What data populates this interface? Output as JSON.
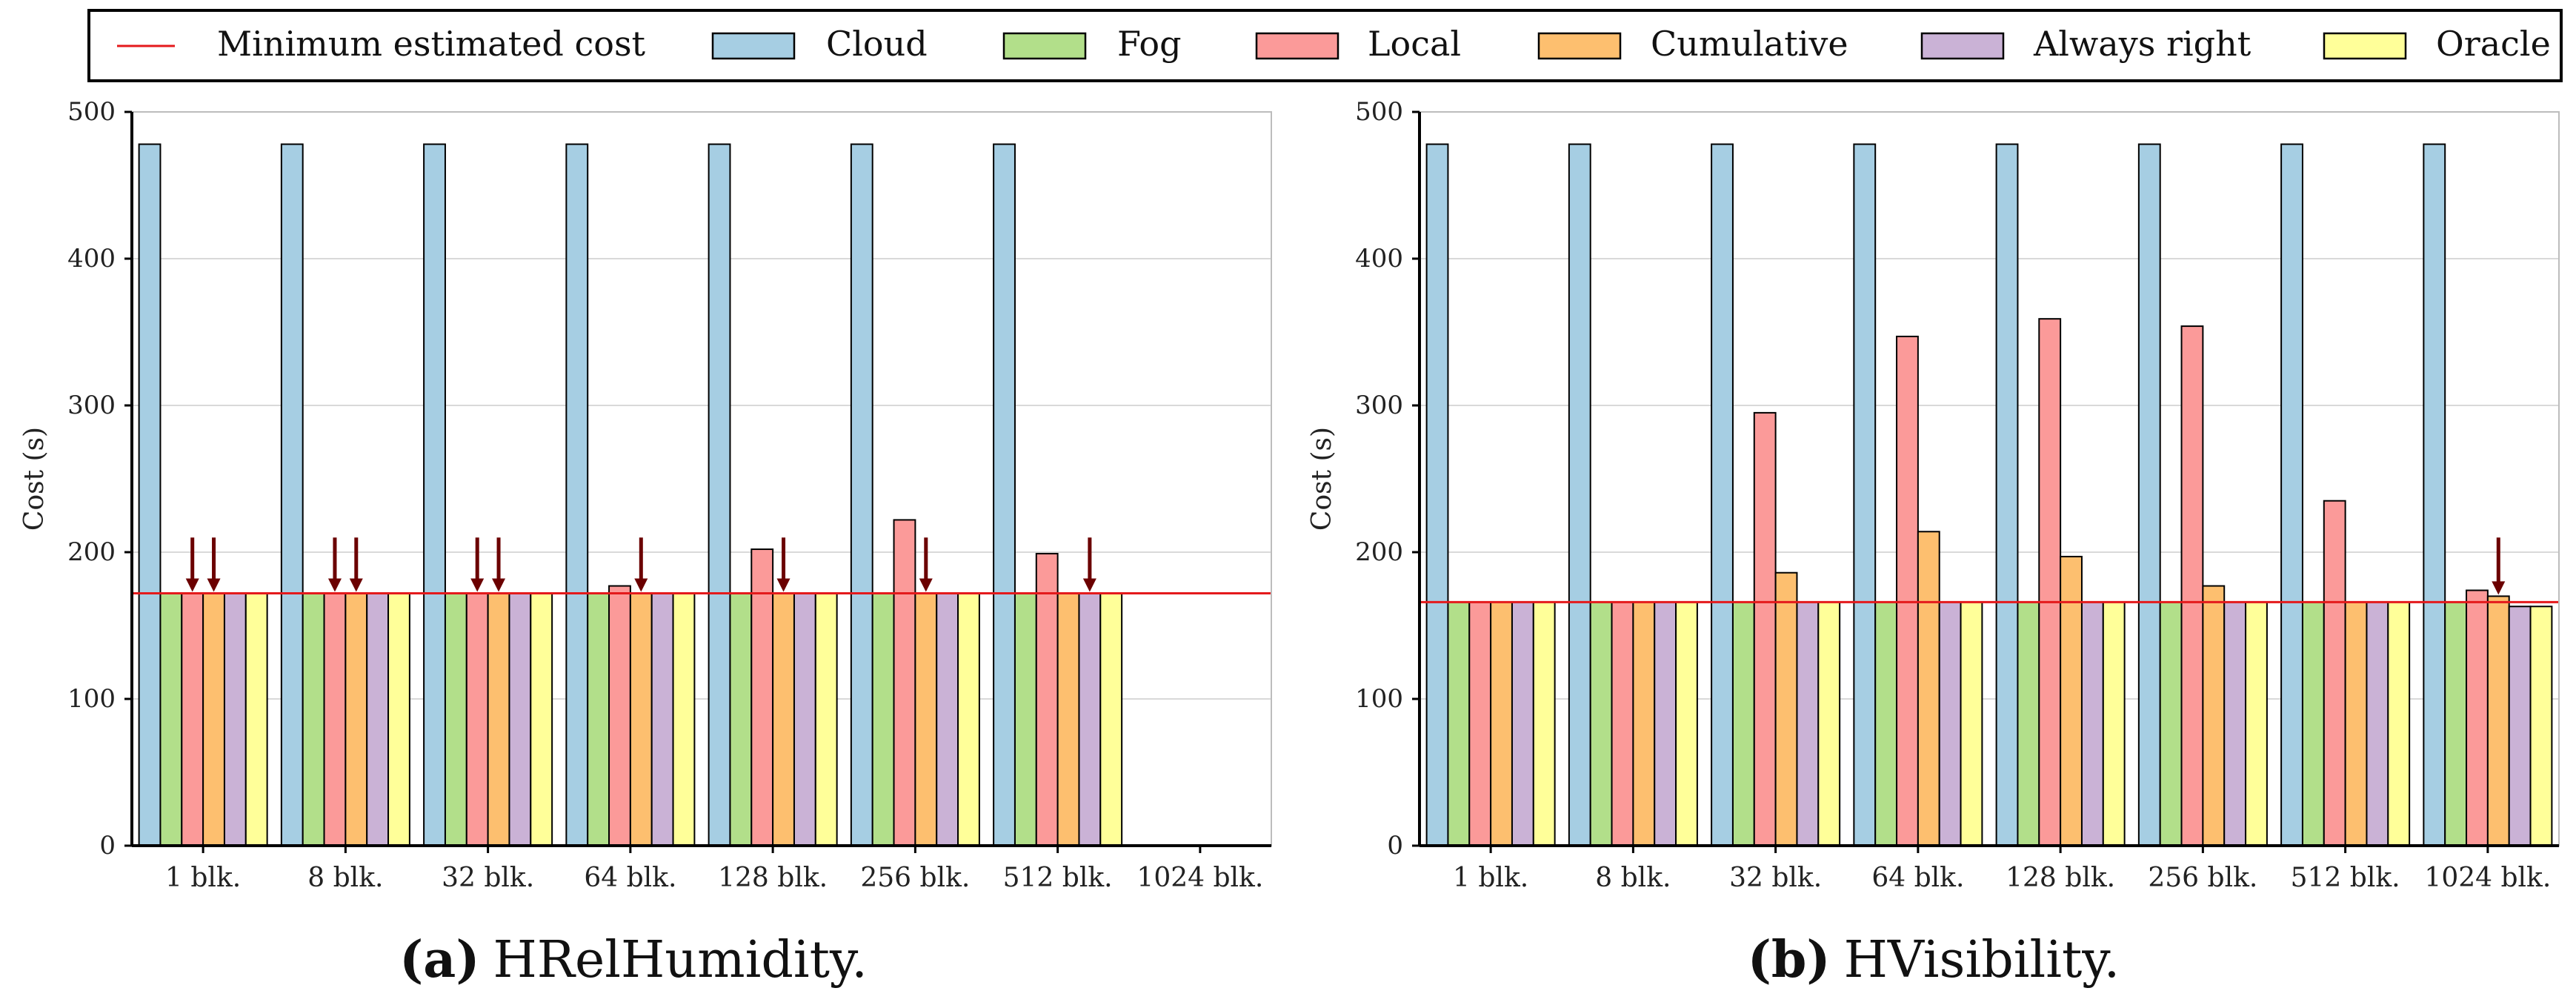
{
  "legend": {
    "items": [
      {
        "kind": "line",
        "label": "Minimum estimated cost",
        "color": "#e41a1c"
      },
      {
        "kind": "box",
        "label": "Cloud",
        "color": "#a6cee3"
      },
      {
        "kind": "box",
        "label": "Fog",
        "color": "#b2df8a"
      },
      {
        "kind": "box",
        "label": "Local",
        "color": "#fb9a99"
      },
      {
        "kind": "box",
        "label": "Cumulative",
        "color": "#fdbf6f"
      },
      {
        "kind": "box",
        "label": "Always right",
        "color": "#cab2d6"
      },
      {
        "kind": "box",
        "label": "Oracle",
        "color": "#ffff99"
      }
    ]
  },
  "chart_data": [
    {
      "type": "bar",
      "caption_letter": "(a)",
      "caption_name": "HRelHumidity.",
      "ylabel": "Cost (s)",
      "ylim": [
        0,
        500
      ],
      "yticks": [
        0,
        100,
        200,
        300,
        400,
        500
      ],
      "categories": [
        "1 blk.",
        "8 blk.",
        "32 blk.",
        "64 blk.",
        "128 blk.",
        "256 blk.",
        "512 blk.",
        "1024 blk."
      ],
      "min_estimated_cost": 172,
      "series": [
        {
          "name": "Cloud",
          "values": [
            478,
            478,
            478,
            478,
            478,
            478,
            478,
            null
          ]
        },
        {
          "name": "Fog",
          "values": [
            172,
            172,
            172,
            172,
            172,
            172,
            172,
            null
          ]
        },
        {
          "name": "Local",
          "values": [
            172,
            172,
            172,
            177,
            202,
            222,
            199,
            null
          ]
        },
        {
          "name": "Cumulative",
          "values": [
            172,
            172,
            172,
            172,
            172,
            172,
            172,
            null
          ]
        },
        {
          "name": "Always right",
          "values": [
            172,
            172,
            172,
            172,
            172,
            172,
            172,
            null
          ]
        },
        {
          "name": "Oracle",
          "values": [
            172,
            172,
            172,
            172,
            172,
            172,
            172,
            null
          ]
        }
      ],
      "arrows": [
        {
          "category": 0,
          "series": "Local"
        },
        {
          "category": 0,
          "series": "Cumulative"
        },
        {
          "category": 1,
          "series": "Local"
        },
        {
          "category": 1,
          "series": "Cumulative"
        },
        {
          "category": 2,
          "series": "Local"
        },
        {
          "category": 2,
          "series": "Cumulative"
        },
        {
          "category": 3,
          "series": "Cumulative"
        },
        {
          "category": 4,
          "series": "Cumulative"
        },
        {
          "category": 5,
          "series": "Cumulative"
        },
        {
          "category": 6,
          "series": "Always right"
        }
      ]
    },
    {
      "type": "bar",
      "caption_letter": "(b)",
      "caption_name": "HVisibility.",
      "ylabel": "Cost (s)",
      "ylim": [
        0,
        500
      ],
      "yticks": [
        0,
        100,
        200,
        300,
        400,
        500
      ],
      "categories": [
        "1 blk.",
        "8 blk.",
        "32 blk.",
        "64 blk.",
        "128 blk.",
        "256 blk.",
        "512 blk.",
        "1024 blk."
      ],
      "min_estimated_cost": 166,
      "series": [
        {
          "name": "Cloud",
          "values": [
            478,
            478,
            478,
            478,
            478,
            478,
            478,
            478
          ]
        },
        {
          "name": "Fog",
          "values": [
            166,
            166,
            166,
            166,
            166,
            166,
            166,
            166
          ]
        },
        {
          "name": "Local",
          "values": [
            166,
            166,
            295,
            347,
            359,
            354,
            235,
            174
          ]
        },
        {
          "name": "Cumulative",
          "values": [
            166,
            166,
            186,
            214,
            197,
            177,
            166,
            170
          ]
        },
        {
          "name": "Always right",
          "values": [
            166,
            166,
            166,
            166,
            166,
            166,
            166,
            163
          ]
        },
        {
          "name": "Oracle",
          "values": [
            166,
            166,
            166,
            166,
            166,
            166,
            166,
            163
          ]
        }
      ],
      "arrows": [
        {
          "category": 7,
          "series": "Cumulative"
        }
      ]
    }
  ]
}
